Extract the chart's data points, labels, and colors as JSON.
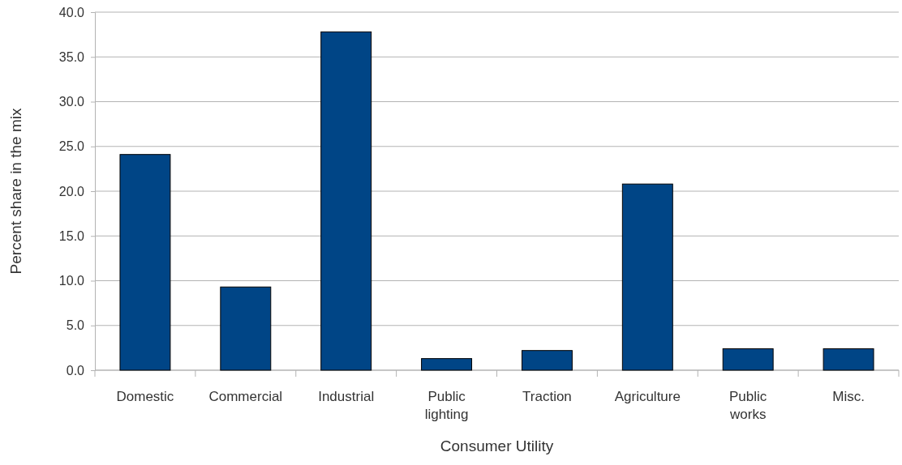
{
  "chart_data": {
    "type": "bar",
    "xlabel": "Consumer Utility",
    "ylabel": "Percent share in the mix",
    "categories": [
      "Domestic",
      "Commercial",
      "Industrial",
      "Public lighting",
      "Traction",
      "Agriculture",
      "Public works",
      "Misc."
    ],
    "values": [
      24.1,
      9.3,
      37.8,
      1.3,
      2.2,
      20.8,
      2.4,
      2.4
    ],
    "color": "#004586",
    "ylim": [
      0,
      40
    ],
    "yticks": [
      {
        "value": 0,
        "label": "0.0"
      },
      {
        "value": 5,
        "label": "5.0"
      },
      {
        "value": 10,
        "label": "10.0"
      },
      {
        "value": 15,
        "label": "15.0"
      },
      {
        "value": 20,
        "label": "20.0"
      },
      {
        "value": 25,
        "label": "25.0"
      },
      {
        "value": 30,
        "label": "30.0"
      },
      {
        "value": 35,
        "label": "35.0"
      },
      {
        "value": 40,
        "label": "40.0"
      }
    ],
    "grid": "y"
  }
}
